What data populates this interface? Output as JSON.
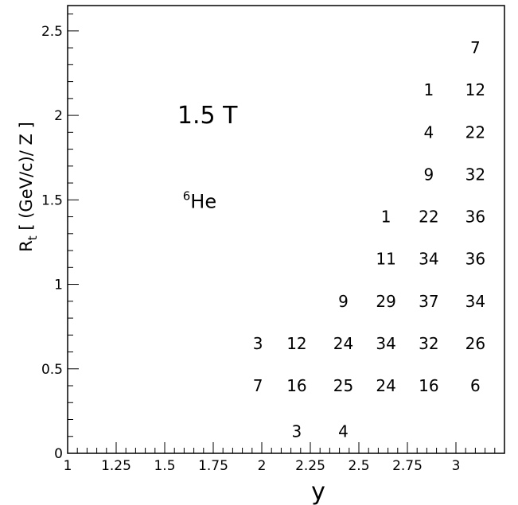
{
  "chart_data": {
    "type": "table",
    "xlabel": "y",
    "ylabel": "R",
    "ylabel_sub": "t",
    "ylabel_unit": " [ (GeV/c)/ Z ]",
    "xlim": [
      1,
      3.25
    ],
    "ylim": [
      0,
      2.65
    ],
    "x_ticks": [
      1,
      1.25,
      1.5,
      1.75,
      2,
      2.25,
      2.5,
      2.75,
      3
    ],
    "x_tick_labels": [
      "1",
      "1.25",
      "1.5",
      "1.75",
      "2",
      "2.25",
      "2.5",
      "2.75",
      "3"
    ],
    "y_ticks": [
      0,
      0.5,
      1,
      1.5,
      2,
      2.5
    ],
    "y_tick_labels": [
      "0",
      "0.5",
      "1",
      "1.5",
      "2",
      "2.5"
    ],
    "annotations": [
      {
        "text": "1.5 T",
        "x": 1.72,
        "y": 2.0,
        "style": "big"
      },
      {
        "text": "He",
        "superscript": "6",
        "x": 1.68,
        "y": 1.5,
        "style": "med"
      }
    ],
    "cells": [
      {
        "x": 2.18,
        "y": 0.13,
        "label": "3"
      },
      {
        "x": 2.42,
        "y": 0.13,
        "label": "4"
      },
      {
        "x": 1.98,
        "y": 0.4,
        "label": "7"
      },
      {
        "x": 2.18,
        "y": 0.4,
        "label": "16"
      },
      {
        "x": 2.42,
        "y": 0.4,
        "label": "25"
      },
      {
        "x": 2.64,
        "y": 0.4,
        "label": "24"
      },
      {
        "x": 2.86,
        "y": 0.4,
        "label": "16"
      },
      {
        "x": 3.1,
        "y": 0.4,
        "label": "6"
      },
      {
        "x": 1.98,
        "y": 0.65,
        "label": "3"
      },
      {
        "x": 2.18,
        "y": 0.65,
        "label": "12"
      },
      {
        "x": 2.42,
        "y": 0.65,
        "label": "24"
      },
      {
        "x": 2.64,
        "y": 0.65,
        "label": "34"
      },
      {
        "x": 2.86,
        "y": 0.65,
        "label": "32"
      },
      {
        "x": 3.1,
        "y": 0.65,
        "label": "26"
      },
      {
        "x": 2.42,
        "y": 0.9,
        "label": "9"
      },
      {
        "x": 2.64,
        "y": 0.9,
        "label": "29"
      },
      {
        "x": 2.86,
        "y": 0.9,
        "label": "37"
      },
      {
        "x": 3.1,
        "y": 0.9,
        "label": "34"
      },
      {
        "x": 2.64,
        "y": 1.15,
        "label": "11"
      },
      {
        "x": 2.86,
        "y": 1.15,
        "label": "34"
      },
      {
        "x": 3.1,
        "y": 1.15,
        "label": "36"
      },
      {
        "x": 2.64,
        "y": 1.4,
        "label": "1"
      },
      {
        "x": 2.86,
        "y": 1.4,
        "label": "22"
      },
      {
        "x": 3.1,
        "y": 1.4,
        "label": "36"
      },
      {
        "x": 2.86,
        "y": 1.65,
        "label": "9"
      },
      {
        "x": 3.1,
        "y": 1.65,
        "label": "32"
      },
      {
        "x": 2.86,
        "y": 1.9,
        "label": "4"
      },
      {
        "x": 3.1,
        "y": 1.9,
        "label": "22"
      },
      {
        "x": 2.86,
        "y": 2.15,
        "label": "1"
      },
      {
        "x": 3.1,
        "y": 2.15,
        "label": "12"
      },
      {
        "x": 3.1,
        "y": 2.4,
        "label": "7"
      }
    ]
  }
}
